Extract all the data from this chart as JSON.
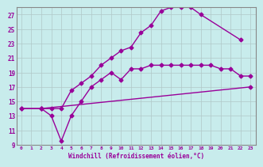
{
  "xlabel": "Windchill (Refroidissement éolien,°C)",
  "bg_color": "#c8ecec",
  "grid_color": "#b0c8c8",
  "line_color": "#990099",
  "xlim": [
    -0.5,
    23.5
  ],
  "ylim": [
    9,
    28
  ],
  "xticks": [
    0,
    1,
    2,
    3,
    4,
    5,
    6,
    7,
    8,
    9,
    10,
    11,
    12,
    13,
    14,
    15,
    16,
    17,
    18,
    19,
    20,
    21,
    22,
    23
  ],
  "yticks": [
    9,
    11,
    13,
    15,
    17,
    19,
    21,
    23,
    25,
    27
  ],
  "curve1_x": [
    0,
    2,
    3,
    4,
    5,
    6,
    7,
    8,
    9,
    10,
    11,
    12,
    13,
    14,
    15,
    16,
    17,
    18,
    22
  ],
  "curve1_y": [
    14,
    14,
    14,
    14,
    16.5,
    17.5,
    18.5,
    20,
    21,
    22,
    22.5,
    24.5,
    25.5,
    27.5,
    28,
    28,
    28,
    27,
    23.5
  ],
  "curve2_x": [
    2,
    3,
    4,
    5,
    6,
    7,
    8,
    9,
    10,
    11,
    12,
    13,
    14,
    15,
    16,
    17,
    18,
    19,
    20,
    21,
    22,
    23
  ],
  "curve2_y": [
    14,
    13,
    9.5,
    13,
    15,
    17,
    18,
    19,
    18,
    19.5,
    19.5,
    20,
    20,
    20,
    20,
    20,
    20,
    20,
    19.5,
    19.5,
    18.5,
    18.5
  ],
  "curve3_x": [
    0,
    2,
    23
  ],
  "curve3_y": [
    14,
    14,
    17
  ]
}
